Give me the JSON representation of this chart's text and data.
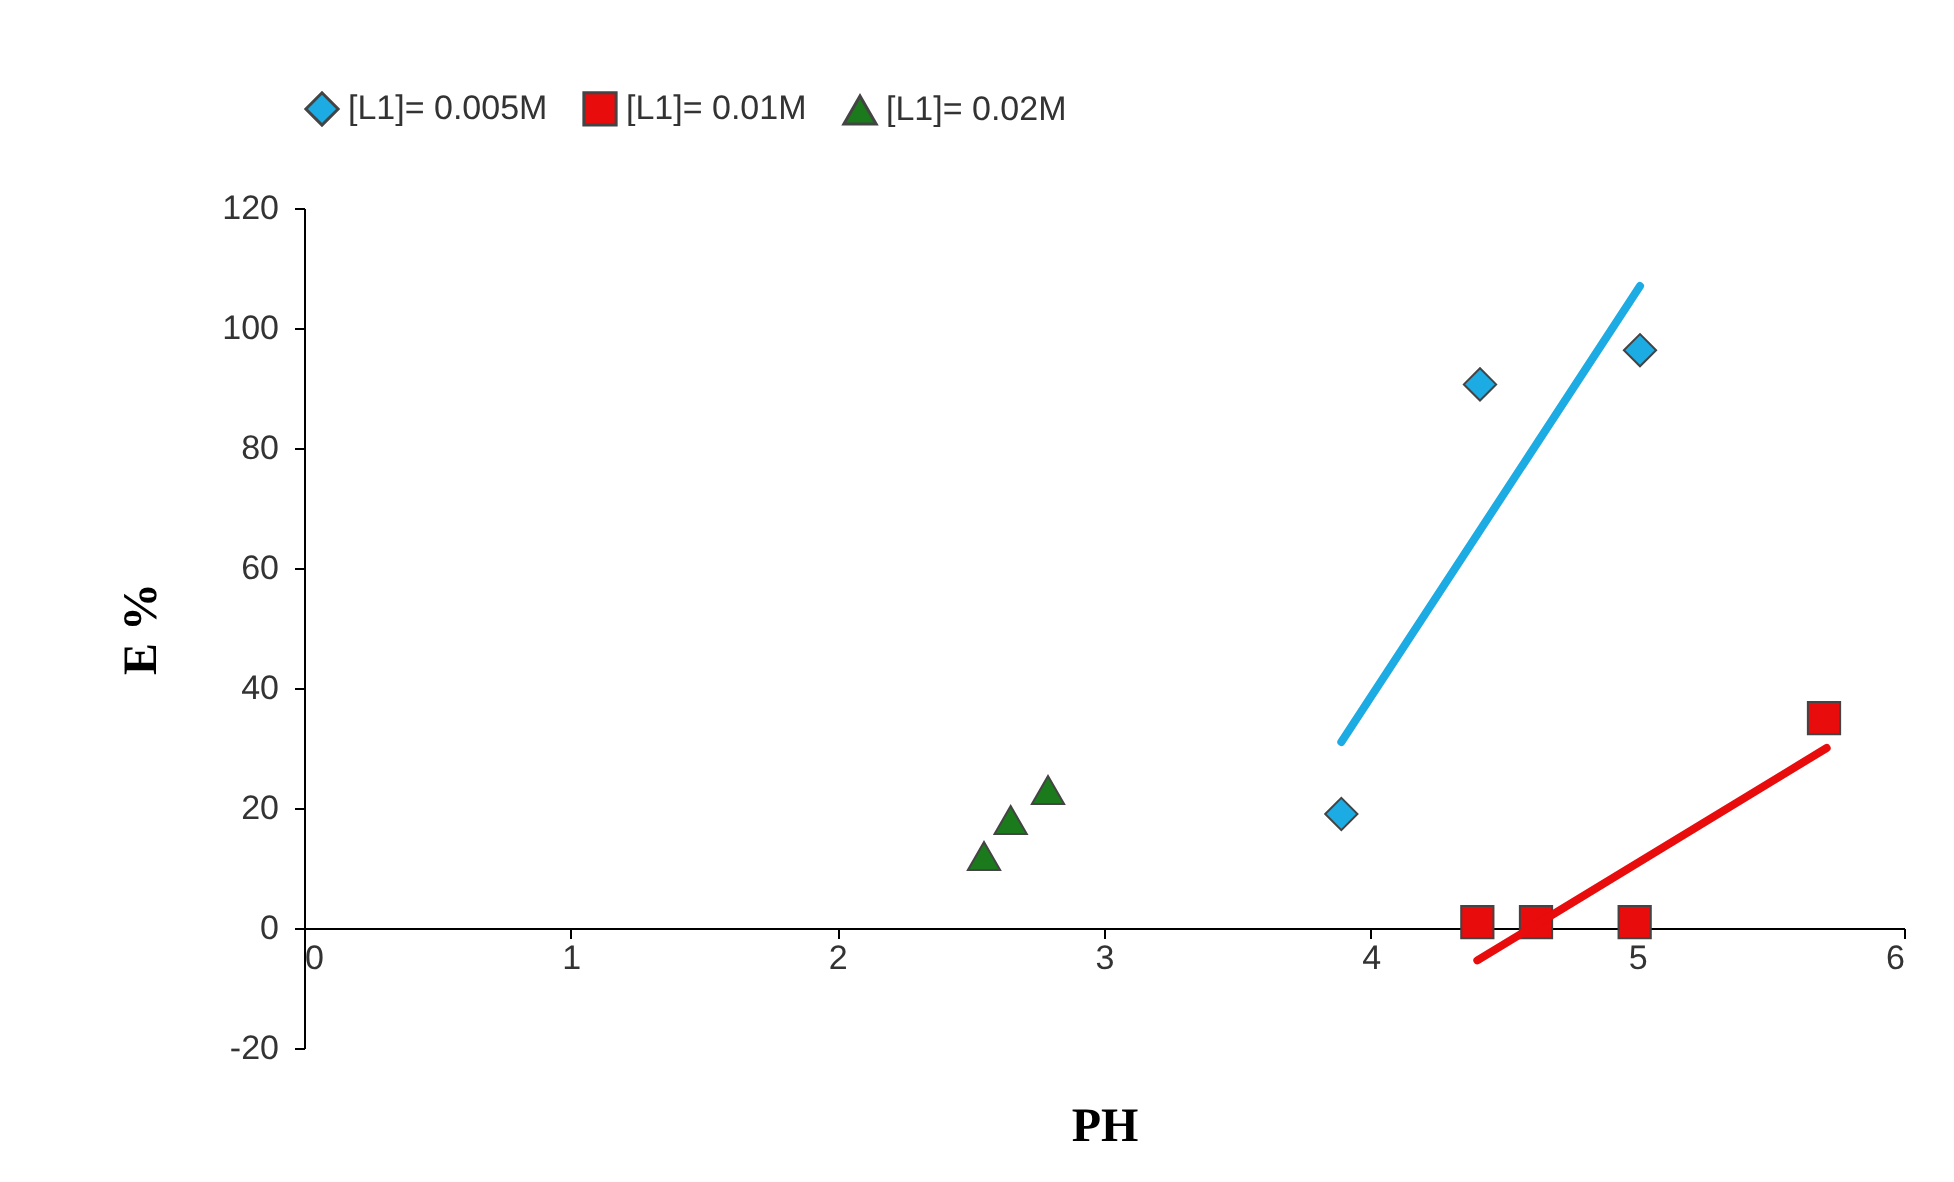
{
  "chart_data": {
    "type": "scatter",
    "xlabel": "PH",
    "ylabel": "E %",
    "xlim": [
      0,
      6
    ],
    "ylim": [
      -20,
      120
    ],
    "xticks": [
      0,
      1,
      2,
      3,
      4,
      5,
      6
    ],
    "yticks": [
      -20,
      0,
      20,
      40,
      60,
      80,
      100,
      120
    ],
    "grid": false,
    "legend": "top",
    "series": [
      {
        "name": "[L1]= 0.005M",
        "marker": "diamond",
        "color": "#1cabe2",
        "x": [
          3.89,
          4.41,
          5.01
        ],
        "values": [
          19,
          90.6,
          96.3
        ]
      },
      {
        "name": "[L1]= 0.01M",
        "marker": "square",
        "color": "#e80c0c",
        "x": [
          4.4,
          4.62,
          4.99,
          5.7
        ],
        "values": [
          1,
          1,
          1,
          35
        ]
      },
      {
        "name": "[L1]= 0.02M",
        "marker": "triangle",
        "color": "#1b7a1b",
        "x": [
          2.55,
          2.65,
          2.79
        ],
        "values": [
          12,
          18,
          23
        ]
      },
      {
        "type": "line",
        "color": "#1cabe2",
        "x": [
          3.89,
          5.01
        ],
        "values": [
          31,
          107
        ]
      },
      {
        "type": "line",
        "color": "#e80c0c",
        "x": [
          4.4,
          5.71
        ],
        "values": [
          -5.4,
          30
        ]
      }
    ]
  }
}
